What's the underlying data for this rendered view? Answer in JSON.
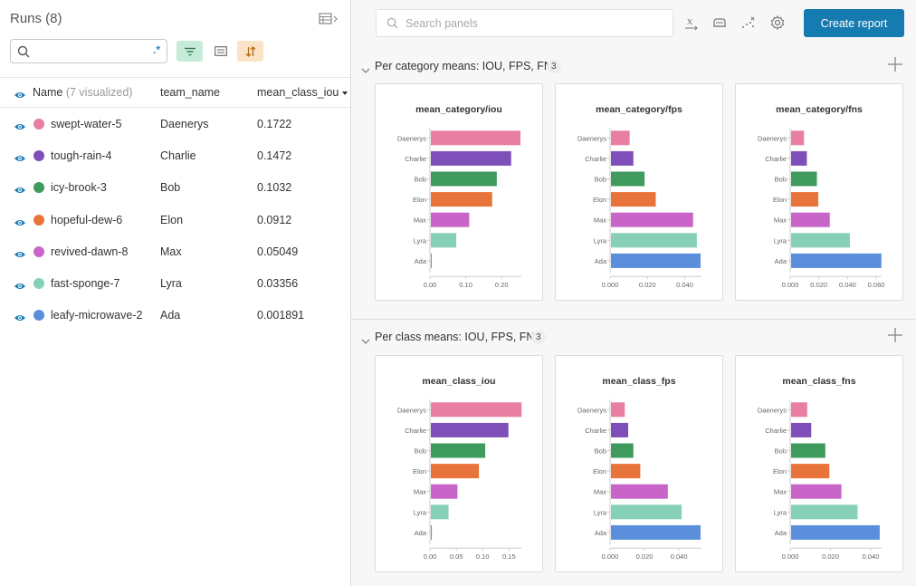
{
  "runs_panel": {
    "title": "Runs (8)",
    "search_placeholder": "",
    "regex_label": ".*",
    "columns": {
      "name": "Name",
      "name_note": "(7 visualized)",
      "team": "team_name",
      "metric": "mean_class_iou"
    },
    "rows": [
      {
        "name": "swept-water-5",
        "team": "Daenerys",
        "value": "0.1722",
        "color": "#e87ea1"
      },
      {
        "name": "tough-rain-4",
        "team": "Charlie",
        "value": "0.1472",
        "color": "#7e4fb8"
      },
      {
        "name": "icy-brook-3",
        "team": "Bob",
        "value": "0.1032",
        "color": "#3f9a5d"
      },
      {
        "name": "hopeful-dew-6",
        "team": "Elon",
        "value": "0.0912",
        "color": "#e8743b"
      },
      {
        "name": "revived-dawn-8",
        "team": "Max",
        "value": "0.05049",
        "color": "#c964c9"
      },
      {
        "name": "fast-sponge-7",
        "team": "Lyra",
        "value": "0.03356",
        "color": "#86d0b8"
      },
      {
        "name": "leafy-microwave-2",
        "team": "Ada",
        "value": "0.001891",
        "color": "#5b8fdc"
      }
    ]
  },
  "toolbar": {
    "search_placeholder": "Search panels",
    "create_report": "Create report"
  },
  "sections": [
    {
      "title": "Per category means: IOU, FPS, FNS",
      "count": "3"
    },
    {
      "title": "Per class means: IOU, FPS, FNS",
      "count": "3"
    }
  ],
  "charts": [
    {
      "title": "mean_category/iou",
      "ticks": [
        "0.00",
        "0.10",
        "0.20"
      ],
      "tick_values": [
        0,
        0.1,
        0.2
      ],
      "xmax": 0.25,
      "values": [
        0.25,
        0.224,
        0.184,
        0.171,
        0.107,
        0.071,
        0.002
      ]
    },
    {
      "title": "mean_category/fps",
      "ticks": [
        "0.000",
        "0.020",
        "0.040"
      ],
      "tick_values": [
        0,
        0.02,
        0.04
      ],
      "xmax": 0.048,
      "values": [
        0.01,
        0.012,
        0.018,
        0.024,
        0.044,
        0.046,
        0.048
      ]
    },
    {
      "title": "mean_category/fns",
      "ticks": [
        "0.000",
        "0.020",
        "0.040",
        "0.060"
      ],
      "tick_values": [
        0,
        0.02,
        0.04,
        0.06
      ],
      "xmax": 0.0625,
      "values": [
        0.009,
        0.011,
        0.018,
        0.019,
        0.027,
        0.041,
        0.063
      ]
    },
    {
      "title": "mean_class_iou",
      "ticks": [
        "0.00",
        "0.05",
        "0.10",
        "0.15"
      ],
      "tick_values": [
        0,
        0.05,
        0.1,
        0.15
      ],
      "xmax": 0.17,
      "values": [
        0.1722,
        0.1472,
        0.1032,
        0.0912,
        0.05049,
        0.03356,
        0.001891
      ]
    },
    {
      "title": "mean_class_fps",
      "ticks": [
        "0.000",
        "0.020",
        "0.040"
      ],
      "tick_values": [
        0,
        0.02,
        0.04
      ],
      "xmax": 0.052,
      "values": [
        0.008,
        0.01,
        0.013,
        0.017,
        0.033,
        0.041,
        0.052
      ]
    },
    {
      "title": "mean_class_fns",
      "ticks": [
        "0.000",
        "0.020",
        "0.040"
      ],
      "tick_values": [
        0,
        0.02,
        0.04
      ],
      "xmax": 0.0445,
      "values": [
        0.008,
        0.01,
        0.017,
        0.019,
        0.025,
        0.033,
        0.044
      ]
    }
  ],
  "chart_data": [
    {
      "type": "bar",
      "title": "mean_category/iou",
      "categories": [
        "Daenerys",
        "Charlie",
        "Bob",
        "Elon",
        "Max",
        "Lyra",
        "Ada"
      ],
      "values": [
        0.25,
        0.224,
        0.184,
        0.171,
        0.107,
        0.071,
        0.002
      ],
      "xlim": [
        0,
        0.25
      ]
    },
    {
      "type": "bar",
      "title": "mean_category/fps",
      "categories": [
        "Daenerys",
        "Charlie",
        "Bob",
        "Elon",
        "Max",
        "Lyra",
        "Ada"
      ],
      "values": [
        0.01,
        0.012,
        0.018,
        0.024,
        0.044,
        0.046,
        0.048
      ],
      "xlim": [
        0,
        0.048
      ]
    },
    {
      "type": "bar",
      "title": "mean_category/fns",
      "categories": [
        "Daenerys",
        "Charlie",
        "Bob",
        "Elon",
        "Max",
        "Lyra",
        "Ada"
      ],
      "values": [
        0.009,
        0.011,
        0.018,
        0.019,
        0.027,
        0.041,
        0.063
      ],
      "xlim": [
        0,
        0.0625
      ]
    },
    {
      "type": "bar",
      "title": "mean_class_iou",
      "categories": [
        "Daenerys",
        "Charlie",
        "Bob",
        "Elon",
        "Max",
        "Lyra",
        "Ada"
      ],
      "values": [
        0.1722,
        0.1472,
        0.1032,
        0.0912,
        0.05049,
        0.03356,
        0.001891
      ],
      "xlim": [
        0,
        0.17
      ]
    },
    {
      "type": "bar",
      "title": "mean_class_fps",
      "categories": [
        "Daenerys",
        "Charlie",
        "Bob",
        "Elon",
        "Max",
        "Lyra",
        "Ada"
      ],
      "values": [
        0.008,
        0.01,
        0.013,
        0.017,
        0.033,
        0.041,
        0.052
      ],
      "xlim": [
        0,
        0.052
      ]
    },
    {
      "type": "bar",
      "title": "mean_class_fns",
      "categories": [
        "Daenerys",
        "Charlie",
        "Bob",
        "Elon",
        "Max",
        "Lyra",
        "Ada"
      ],
      "values": [
        0.008,
        0.01,
        0.017,
        0.019,
        0.025,
        0.033,
        0.044
      ],
      "xlim": [
        0,
        0.0445
      ]
    }
  ]
}
